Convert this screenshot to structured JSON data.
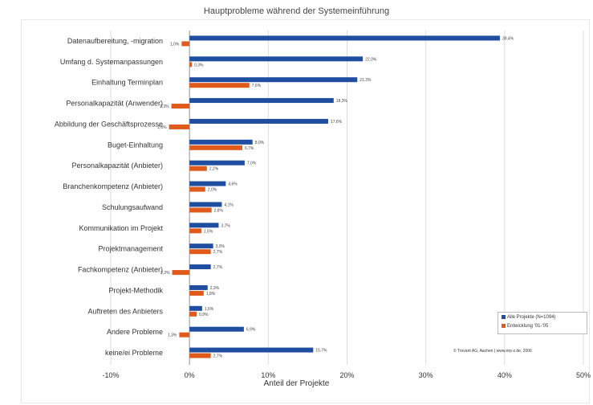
{
  "chart_data": {
    "type": "bar",
    "orientation": "horizontal",
    "title": "Hauptprobleme während der Systemeinführung",
    "xlabel": "Anteil der Projekte",
    "xlim": [
      -10,
      50
    ],
    "ticks": [
      {
        "value": -10,
        "label": "-10%"
      },
      {
        "value": 0,
        "label": "0%"
      },
      {
        "value": 10,
        "label": "10%"
      },
      {
        "value": 20,
        "label": "20%"
      },
      {
        "value": 30,
        "label": "30%"
      },
      {
        "value": 40,
        "label": "40%"
      },
      {
        "value": 50,
        "label": "50%"
      }
    ],
    "grid": true,
    "legend_position": "bottom-right",
    "categories": [
      "Datenaufbereitung, -migration",
      "Umfang d. Systemanpassungen",
      "Einhaltung Terminplan",
      "Personalkapazität (Anwender)",
      "Abbildung der Geschäftsprozesse",
      "Buget-Einhaltung",
      "Personalkapazität (Anbieter)",
      "Branchenkompetenz (Anbieter)",
      "Schulungsaufwand",
      "Kommunikation im Projekt",
      "Projektmanagement",
      "Fachkompetenz (Anbieter)",
      "Projekt-Methodik",
      "Auftreten des Anbieters",
      "Andere Probleme",
      "keine/ei Probleme"
    ],
    "series": [
      {
        "name": "Alle Projekte (N=1094)",
        "color": "#1f4ea1",
        "values": [
          39.4,
          22.0,
          21.3,
          18.3,
          17.6,
          8.0,
          7.0,
          4.6,
          4.1,
          3.7,
          3.0,
          2.7,
          2.3,
          1.6,
          6.9,
          15.7
        ],
        "labels": [
          "39,4%",
          "22,0%",
          "21,3%",
          "18,3%",
          "17,6%",
          "8,0%",
          "7,0%",
          "4,6%",
          "4,1%",
          "3,7%",
          "3,0%",
          "2,7%",
          "2,3%",
          "1,6%",
          "6,9%",
          "15,7%"
        ]
      },
      {
        "name": "Entwicklung '01-'05",
        "color": "#e05a1b",
        "values": [
          -1.0,
          0.3,
          7.6,
          -2.3,
          -2.6,
          6.7,
          2.2,
          2.0,
          2.8,
          1.5,
          2.7,
          -2.2,
          1.8,
          0.9,
          -1.3,
          2.7
        ],
        "labels": [
          "1,0%",
          "0,3%",
          "7,6%",
          "2,3%",
          "2,6%",
          "6,7%",
          "2,2%",
          "2,0%",
          "2,8%",
          "1,5%",
          "2,7%",
          "2,2%",
          "1,8%",
          "0,9%",
          "1,3%",
          "2,7%"
        ]
      }
    ],
    "annotation": "© Trovarit AG, Aachen | www.erp-z.de, 2006"
  }
}
